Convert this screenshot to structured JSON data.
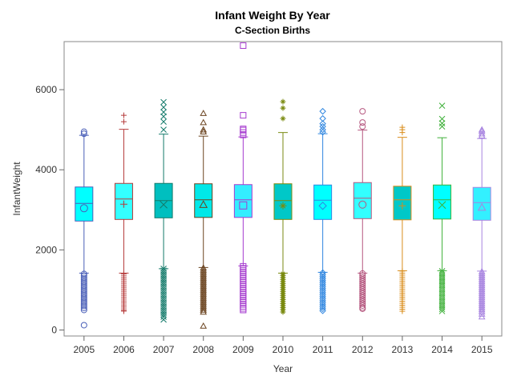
{
  "chart_data": {
    "type": "box",
    "title": "Infant Weight By Year",
    "subtitle": "C-Section Births",
    "xlabel": "Year",
    "ylabel": "InfantWeight",
    "ylim": [
      -150,
      7200
    ],
    "y_ticks": [
      0,
      2000,
      4000,
      6000
    ],
    "grid": false,
    "box_fill": "#00ffff",
    "categories": [
      "2005",
      "2006",
      "2007",
      "2008",
      "2009",
      "2010",
      "2011",
      "2012",
      "2013",
      "2014",
      "2015"
    ],
    "series": [
      {
        "year": "2005",
        "color": "#4a5fb8",
        "fill": "#00ffff",
        "marker": "circle",
        "q1": 2720,
        "median": 3160,
        "q3": 3570,
        "mean": 3040,
        "whisker_low": 1420,
        "whisker_high": 4860,
        "outliers_low": [
          1400,
          1350,
          1300,
          1250,
          1200,
          1150,
          1100,
          1050,
          1000,
          950,
          900,
          850,
          800,
          750,
          700,
          650,
          600,
          550,
          500,
          120
        ],
        "outliers_high": [
          4900,
          4950
        ]
      },
      {
        "year": "2006",
        "color": "#b53a3a",
        "fill": "#33ffff",
        "marker": "plus",
        "q1": 2760,
        "median": 3270,
        "q3": 3660,
        "mean": 3140,
        "whisker_low": 1420,
        "whisker_high": 5010,
        "outliers_low": [
          1400,
          1350,
          1300,
          1250,
          1200,
          1150,
          1100,
          1050,
          1000,
          950,
          900,
          850,
          800,
          750,
          700,
          650,
          600,
          550,
          500,
          470
        ],
        "outliers_high": [
          5200,
          5360
        ]
      },
      {
        "year": "2007",
        "color": "#137a6a",
        "fill": "#00bfbf",
        "marker": "x",
        "q1": 2800,
        "median": 3230,
        "q3": 3660,
        "mean": 3130,
        "whisker_low": 1530,
        "whisker_high": 4890,
        "outliers_low": [
          1530,
          1480,
          1430,
          1380,
          1330,
          1280,
          1230,
          1180,
          1130,
          1080,
          1030,
          980,
          930,
          880,
          830,
          780,
          730,
          680,
          630,
          580,
          530,
          480,
          430,
          380,
          330,
          260
        ],
        "outliers_high": [
          5000,
          5200,
          5330,
          5440,
          5560,
          5690
        ]
      },
      {
        "year": "2008",
        "color": "#6b4420",
        "fill": "#00e8e8",
        "marker": "triangle",
        "q1": 2810,
        "median": 3250,
        "q3": 3650,
        "mean": 3130,
        "whisker_low": 1560,
        "whisker_high": 4840,
        "outliers_low": [
          1550,
          1500,
          1450,
          1400,
          1350,
          1300,
          1250,
          1200,
          1150,
          1100,
          1050,
          1000,
          950,
          900,
          850,
          800,
          750,
          700,
          650,
          600,
          550,
          500,
          450,
          100
        ],
        "outliers_high": [
          4950,
          5000,
          5180,
          5410
        ]
      },
      {
        "year": "2009",
        "color": "#a63ccf",
        "fill": "#33eeff",
        "marker": "square",
        "q1": 2810,
        "median": 3250,
        "q3": 3630,
        "mean": 3110,
        "whisker_low": 1600,
        "whisker_high": 4820,
        "outliers_low": [
          1590,
          1540,
          1490,
          1440,
          1390,
          1340,
          1290,
          1240,
          1190,
          1140,
          1090,
          1040,
          990,
          940,
          890,
          840,
          790,
          740,
          690,
          640,
          590,
          540,
          500
        ],
        "outliers_high": [
          4870,
          4930,
          4990,
          5020,
          5360,
          7100
        ]
      },
      {
        "year": "2010",
        "color": "#7a8a10",
        "fill": "#00c8c8",
        "marker": "star",
        "q1": 2760,
        "median": 3230,
        "q3": 3650,
        "mean": 3100,
        "whisker_low": 1420,
        "whisker_high": 4930,
        "outliers_low": [
          1410,
          1360,
          1310,
          1260,
          1210,
          1160,
          1110,
          1060,
          1010,
          960,
          910,
          860,
          810,
          760,
          710,
          660,
          610,
          560,
          510,
          450
        ],
        "outliers_high": [
          5280,
          5540,
          5700
        ]
      },
      {
        "year": "2011",
        "color": "#2f86e0",
        "fill": "#00ffff",
        "marker": "diamond",
        "q1": 2760,
        "median": 3240,
        "q3": 3620,
        "mean": 3100,
        "whisker_low": 1440,
        "whisker_high": 4900,
        "outliers_low": [
          1430,
          1380,
          1330,
          1280,
          1230,
          1180,
          1130,
          1080,
          1030,
          980,
          930,
          880,
          830,
          780,
          730,
          680,
          630,
          580,
          530,
          480
        ],
        "outliers_high": [
          4940,
          5000,
          5080,
          5150,
          5280,
          5460
        ]
      },
      {
        "year": "2012",
        "color": "#b5577f",
        "fill": "#33ffff",
        "marker": "circle",
        "q1": 2780,
        "median": 3290,
        "q3": 3680,
        "mean": 3130,
        "whisker_low": 1420,
        "whisker_high": 4990,
        "outliers_low": [
          1410,
          1360,
          1310,
          1260,
          1210,
          1160,
          1110,
          1060,
          1010,
          960,
          910,
          860,
          810,
          760,
          710,
          660,
          610,
          560,
          530
        ],
        "outliers_high": [
          5080,
          5180,
          5460
        ]
      },
      {
        "year": "2013",
        "color": "#d98c1a",
        "fill": "#00c8c8",
        "marker": "plus",
        "q1": 2750,
        "median": 3250,
        "q3": 3590,
        "mean": 3100,
        "whisker_low": 1480,
        "whisker_high": 4810,
        "outliers_low": [
          1470,
          1420,
          1370,
          1320,
          1270,
          1220,
          1170,
          1120,
          1070,
          1020,
          970,
          920,
          870,
          820,
          770,
          720,
          670,
          620,
          570,
          520,
          470
        ],
        "outliers_high": [
          4930,
          5000,
          5060
        ]
      },
      {
        "year": "2014",
        "color": "#3fb03a",
        "fill": "#00ffff",
        "marker": "x",
        "q1": 2770,
        "median": 3250,
        "q3": 3620,
        "mean": 3120,
        "whisker_low": 1480,
        "whisker_high": 4800,
        "outliers_low": [
          1470,
          1420,
          1370,
          1320,
          1270,
          1220,
          1170,
          1120,
          1070,
          1020,
          970,
          920,
          870,
          820,
          770,
          720,
          670,
          620,
          570,
          520,
          470
        ],
        "outliers_high": [
          5080,
          5160,
          5270,
          5600
        ]
      },
      {
        "year": "2015",
        "color": "#a884e0",
        "fill": "#33f0ff",
        "marker": "triangle",
        "q1": 2740,
        "median": 3180,
        "q3": 3560,
        "mean": 3060,
        "whisker_low": 1470,
        "whisker_high": 4780,
        "outliers_low": [
          1460,
          1410,
          1360,
          1310,
          1260,
          1210,
          1160,
          1110,
          1060,
          1010,
          960,
          910,
          860,
          810,
          760,
          710,
          660,
          610,
          560,
          510,
          460,
          400,
          330
        ],
        "outliers_high": [
          4850,
          4900,
          4960,
          5000
        ]
      }
    ]
  }
}
